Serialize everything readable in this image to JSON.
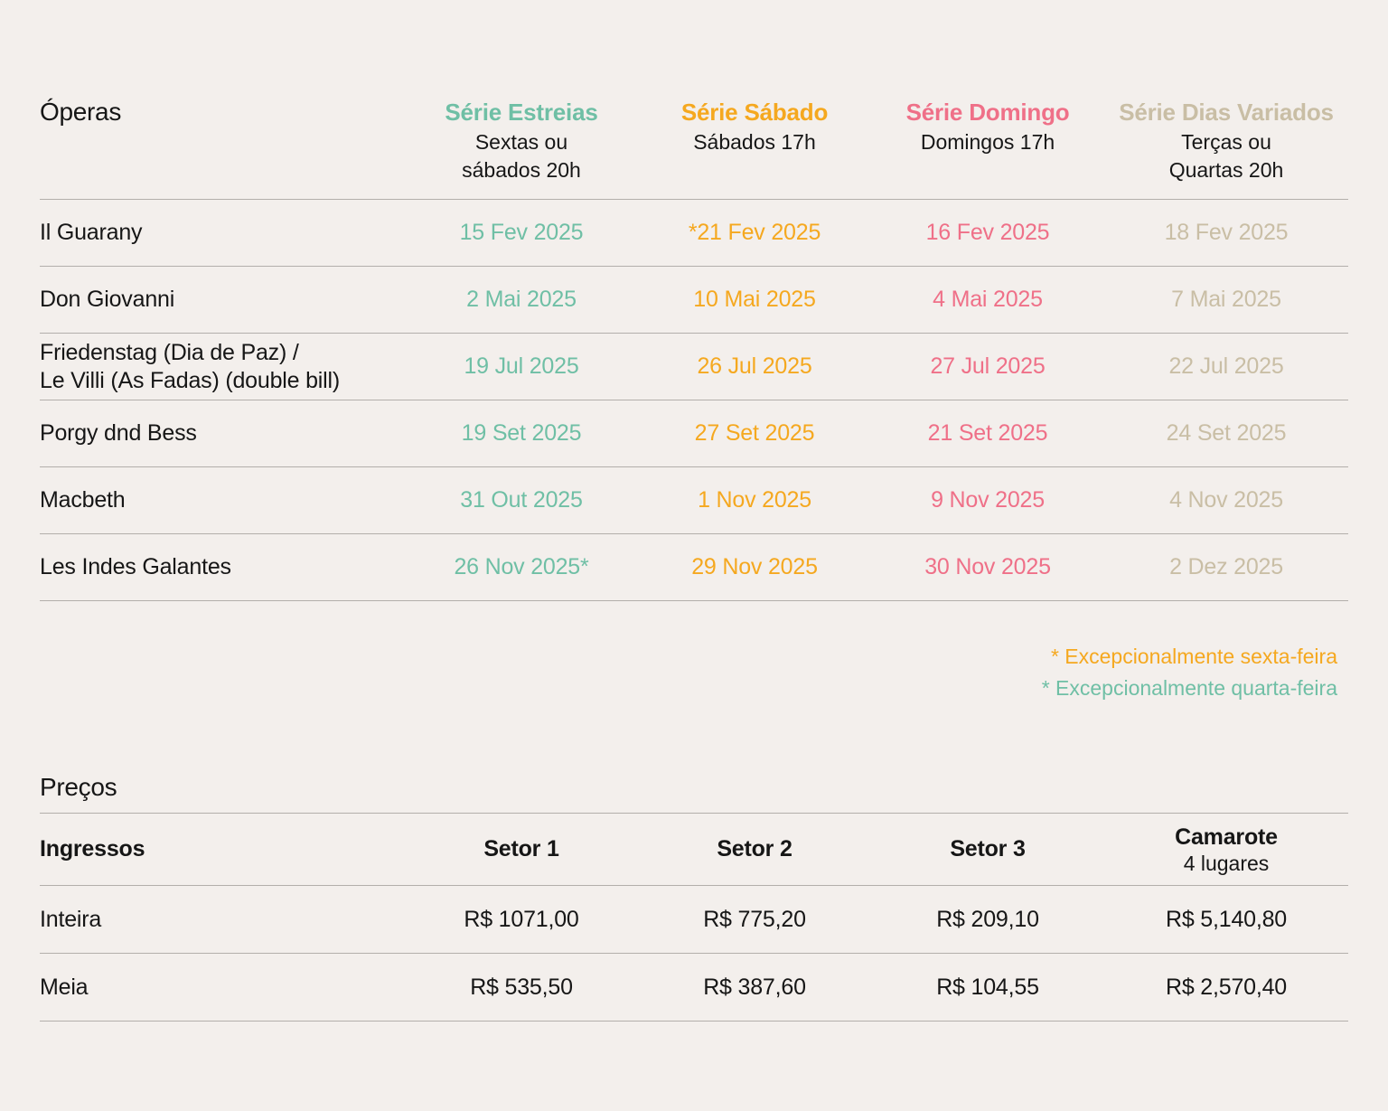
{
  "colors": {
    "background": "#f3efec",
    "text": "#161616",
    "divider": "#b3afab",
    "teal": "#6fbfa5",
    "orange": "#f5a81f",
    "pink": "#ef7088",
    "tan": "#c9bea5"
  },
  "schedule": {
    "title": "Óperas",
    "columns": [
      {
        "label": "Série Estreias",
        "sub": "Sextas ou\nsábados 20h",
        "color": "#6fbfa5"
      },
      {
        "label": "Série Sábado",
        "sub": "Sábados 17h",
        "color": "#f5a81f"
      },
      {
        "label": "Série Domingo",
        "sub": "Domingos 17h",
        "color": "#ef7088"
      },
      {
        "label": "Série Dias Variados",
        "sub": "Terças ou\nQuartas 20h",
        "color": "#c9bea5"
      }
    ],
    "rows": [
      {
        "opera": "Il Guarany",
        "dates": [
          "15 Fev 2025",
          "*21 Fev 2025",
          "16 Fev 2025",
          "18 Fev 2025"
        ]
      },
      {
        "opera": "Don Giovanni",
        "dates": [
          "2 Mai 2025",
          "10 Mai 2025",
          "4 Mai 2025",
          "7 Mai 2025"
        ]
      },
      {
        "opera": "Friedenstag (Dia de Paz) /\nLe Villi (As Fadas) (double bill)",
        "dates": [
          "19 Jul 2025",
          "26 Jul 2025",
          "27 Jul 2025",
          "22 Jul 2025"
        ]
      },
      {
        "opera": "Porgy dnd Bess",
        "dates": [
          "19 Set 2025",
          "27 Set 2025",
          "21 Set 2025",
          "24 Set 2025"
        ]
      },
      {
        "opera": "Macbeth",
        "dates": [
          "31 Out 2025",
          "1 Nov 2025",
          "9 Nov 2025",
          "4 Nov 2025"
        ]
      },
      {
        "opera": "Les Indes Galantes",
        "dates": [
          "26 Nov 2025*",
          "29 Nov 2025",
          "30 Nov 2025",
          "2 Dez 2025"
        ]
      }
    ],
    "footnotes": [
      {
        "text": "* Excepcionalmente sexta-feira",
        "color": "#f5a81f"
      },
      {
        "text": "* Excepcionalmente quarta-feira",
        "color": "#6fbfa5"
      }
    ]
  },
  "prices": {
    "title": "Preços",
    "row_header": "Ingressos",
    "columns": [
      {
        "label": "Setor 1"
      },
      {
        "label": "Setor 2"
      },
      {
        "label": "Setor 3"
      },
      {
        "label": "Camarote",
        "sub": "4 lugares"
      }
    ],
    "rows": [
      {
        "label": "Inteira",
        "values": [
          "R$ 1071,00",
          "R$ 775,20",
          "R$ 209,10",
          "R$ 5,140,80"
        ]
      },
      {
        "label": "Meia",
        "values": [
          "R$ 535,50",
          "R$ 387,60",
          "R$ 104,55",
          "R$ 2,570,40"
        ]
      }
    ]
  }
}
